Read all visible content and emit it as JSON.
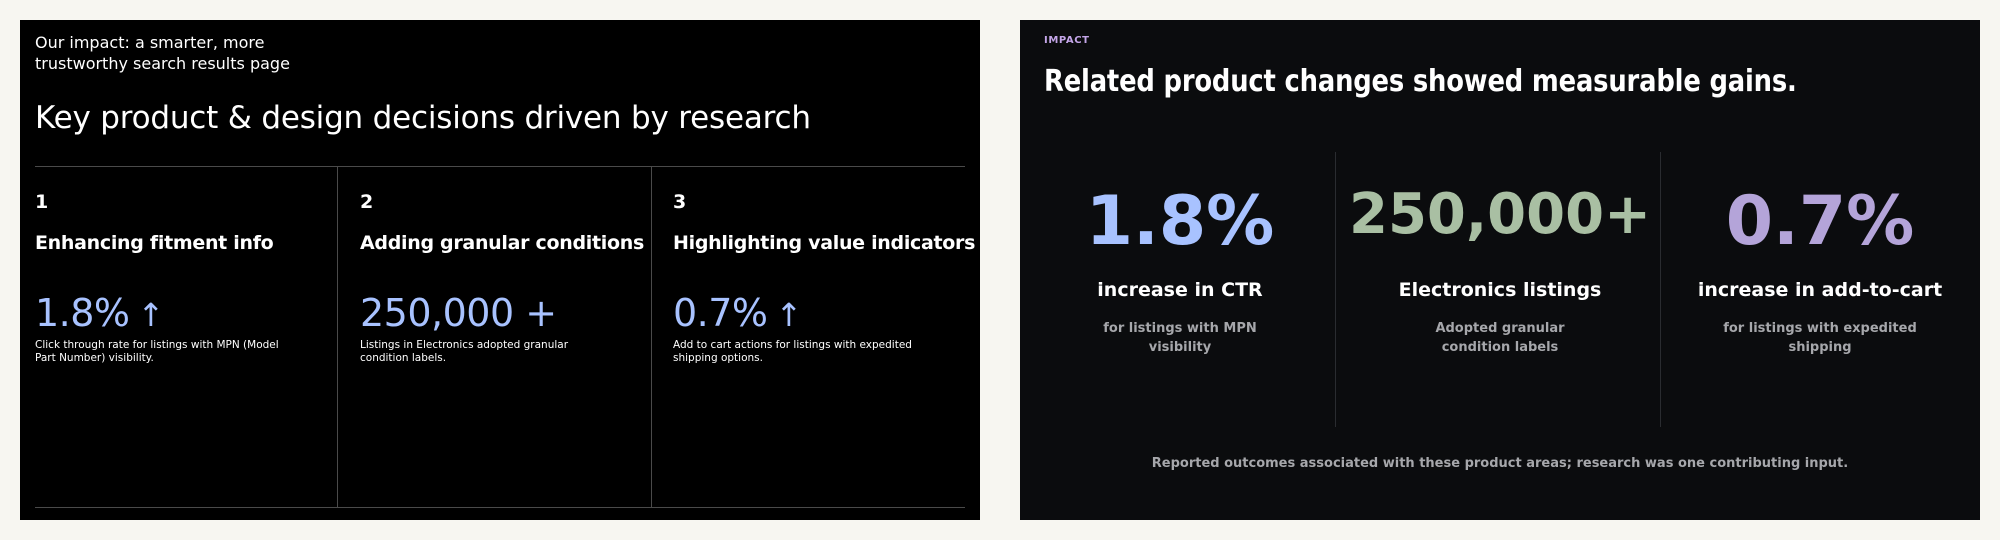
{
  "left_slide": {
    "kicker": "Our impact: a smarter, more trustworthy search results page",
    "title": "Key product & design decisions driven by research",
    "columns": [
      {
        "number": "1",
        "heading": "Enhancing fitment info",
        "stat": "1.8%",
        "arrow": "↑",
        "description": "Click through rate for listings with MPN (Model Part Number) visibility."
      },
      {
        "number": "2",
        "heading": "Adding granular conditions",
        "stat": "250,000 +",
        "arrow": "",
        "description": "Listings in Electronics adopted granular condition labels."
      },
      {
        "number": "3",
        "heading": "Highlighting value indicators",
        "stat": "0.7%",
        "arrow": "↑",
        "description": "Add to cart actions for listings with expedited shipping options."
      }
    ],
    "colors": {
      "background": "#000000",
      "stat": "#a8c2ff"
    }
  },
  "right_slide": {
    "label": "IMPACT",
    "title": "Related product changes showed measurable gains.",
    "metrics": [
      {
        "value": "1.8%",
        "label": "increase in CTR",
        "sub": "for listings with MPN visibility",
        "color": "#a8c2ff"
      },
      {
        "value": "250,000+",
        "label": "Electronics listings",
        "sub": "Adopted granular condition labels",
        "color": "#a9bfa3"
      },
      {
        "value": "0.7%",
        "label": "increase in add-to-cart",
        "sub": "for listings with expedited shipping",
        "color": "#b4a4d9"
      }
    ],
    "footnote": "Reported outcomes associated with these product areas; research was one contributing input.",
    "colors": {
      "background": "#0b0c0e",
      "label": "#c4a6e8"
    }
  }
}
